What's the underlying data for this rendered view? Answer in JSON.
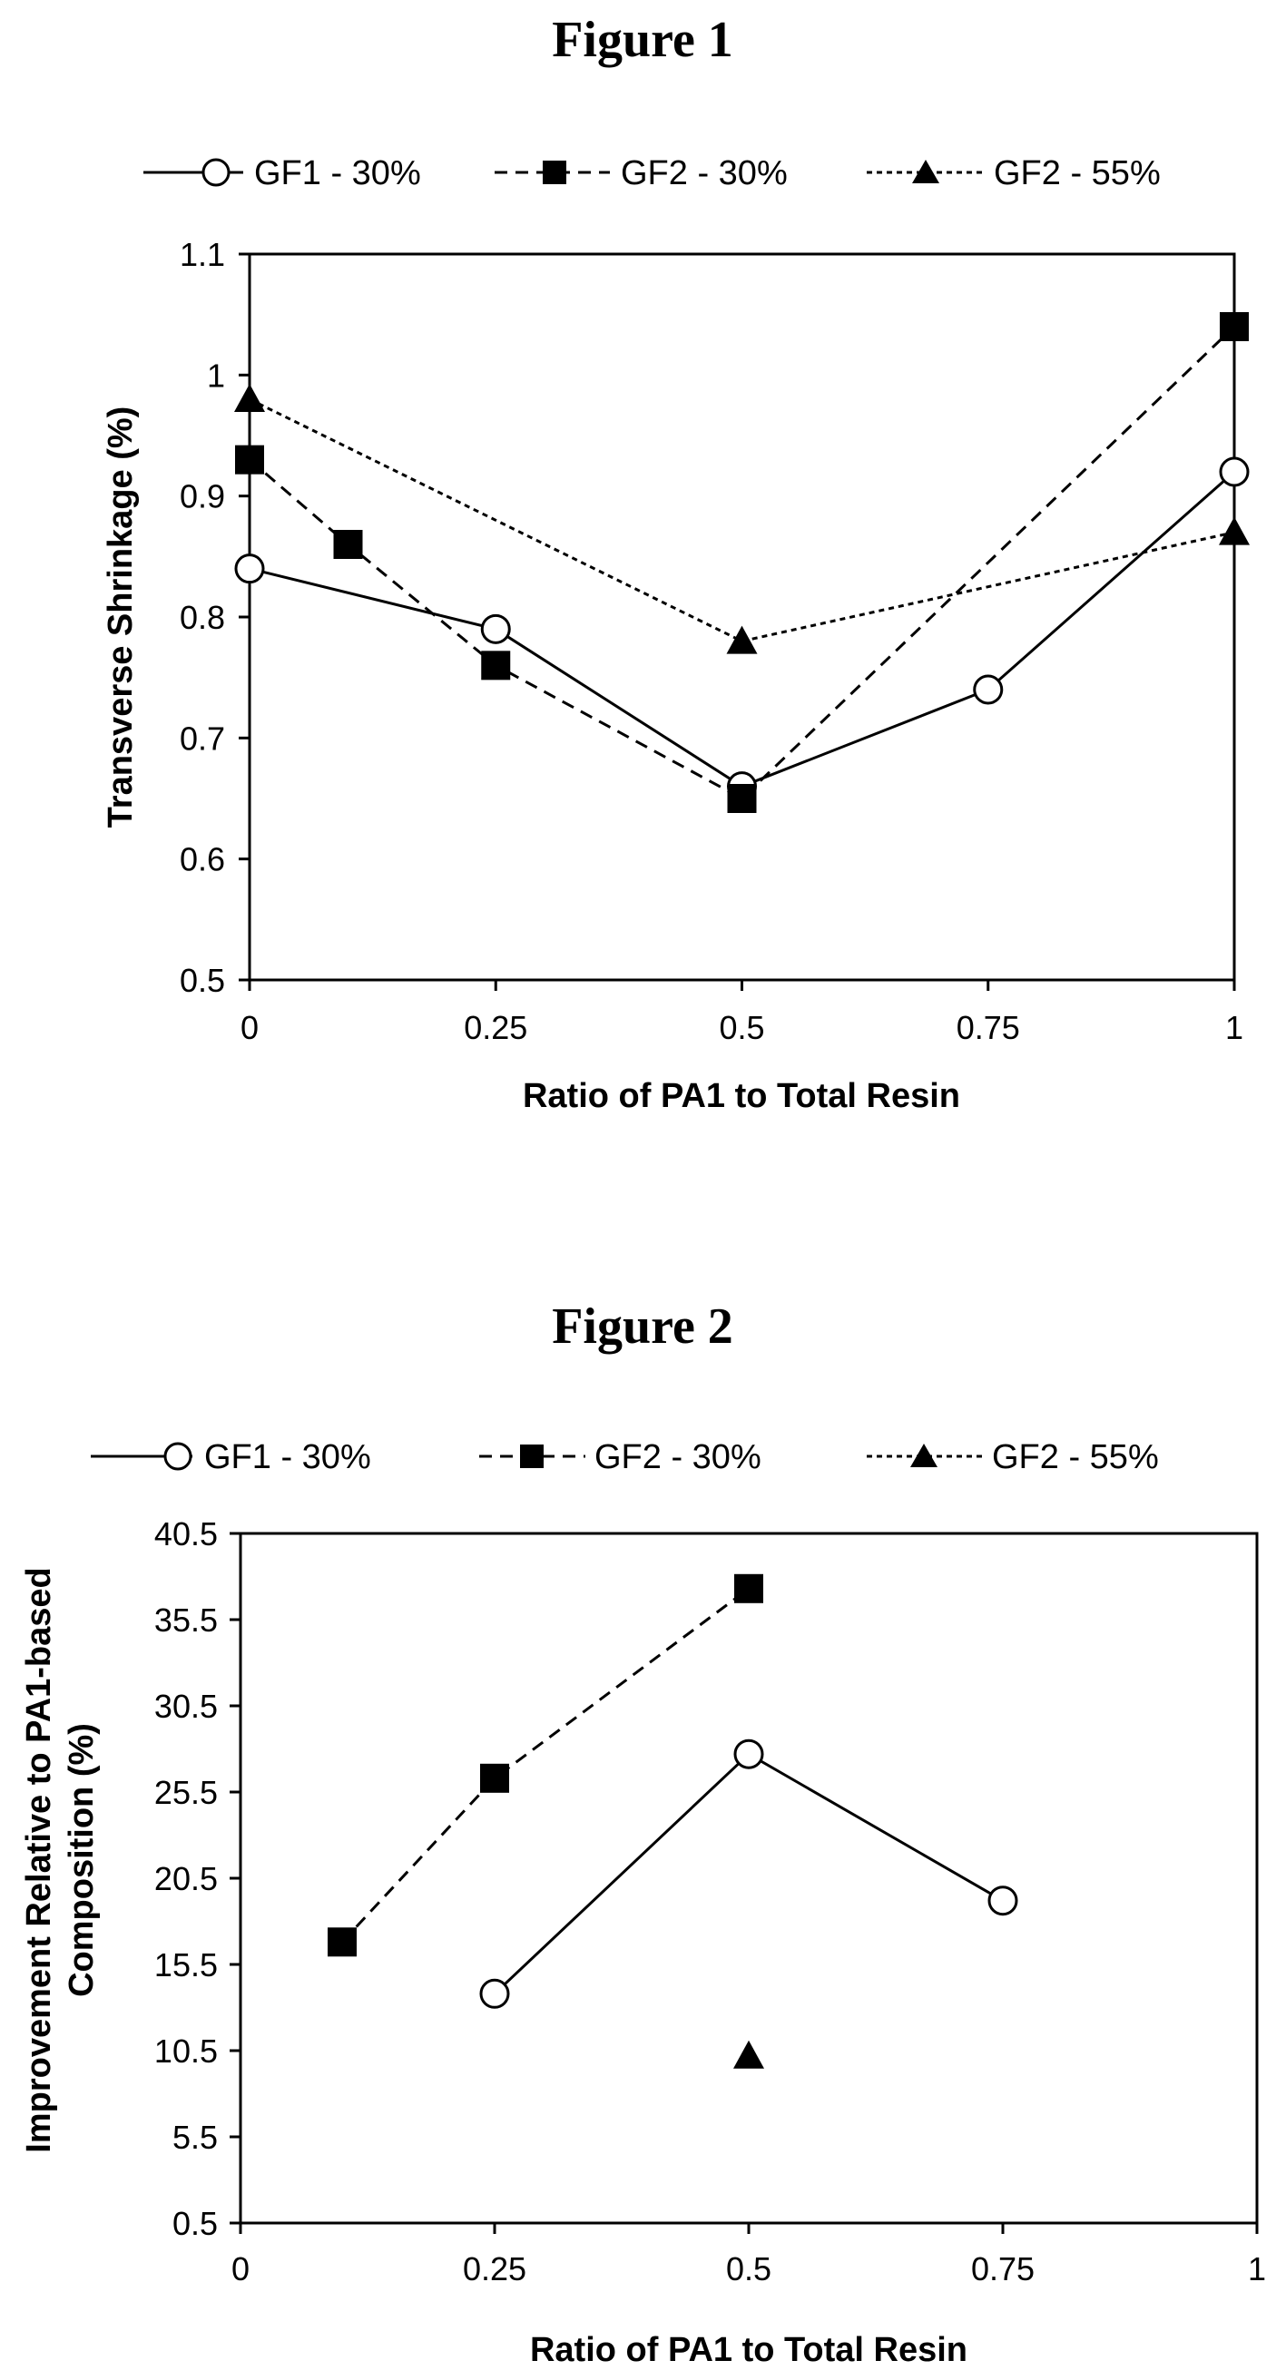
{
  "chart_data": [
    {
      "type": "line",
      "title": "Figure 1",
      "xlabel": "Ratio of  PA1 to Total Resin",
      "ylabel": "Transverse Shrinkage (%)",
      "xlim": [
        0,
        1
      ],
      "ylim": [
        0.5,
        1.1
      ],
      "xticks": [
        "0",
        "0.25",
        "0.5",
        "0.75",
        "1"
      ],
      "yticks": [
        "0.5",
        "0.6",
        "0.7",
        "0.8",
        "0.9",
        "1",
        "1.1"
      ],
      "grid": false,
      "legend_position": "top",
      "series": [
        {
          "name": "GF1 - 30%",
          "marker": "circle-open",
          "line": "solid",
          "x": [
            0,
            0.25,
            0.5,
            0.75,
            1
          ],
          "y": [
            0.84,
            0.79,
            0.66,
            0.74,
            0.92
          ]
        },
        {
          "name": "GF2 - 30%",
          "marker": "square",
          "line": "dashed",
          "x": [
            0,
            0.1,
            0.25,
            0.5,
            1
          ],
          "y": [
            0.93,
            0.86,
            0.76,
            0.65,
            1.04
          ]
        },
        {
          "name": "GF2 - 55%",
          "marker": "triangle",
          "line": "dotted",
          "x": [
            0,
            0.5,
            1
          ],
          "y": [
            0.98,
            0.78,
            0.87
          ]
        }
      ]
    },
    {
      "type": "line",
      "title": "Figure 2",
      "xlabel": "Ratio of PA1 to Total Resin",
      "ylabel": [
        "Improvement Relative to PA1-based",
        "Composition (%)"
      ],
      "xlim": [
        0,
        1
      ],
      "ylim": [
        0.5,
        40.5
      ],
      "xticks": [
        "0",
        "0.25",
        "0.5",
        "0.75",
        "1"
      ],
      "yticks": [
        "0.5",
        "5.5",
        "10.5",
        "15.5",
        "20.5",
        "25.5",
        "30.5",
        "35.5",
        "40.5"
      ],
      "grid": false,
      "legend_position": "top",
      "series": [
        {
          "name": "GF1 - 30%",
          "marker": "circle-open",
          "line": "solid",
          "x": [
            0.25,
            0.5,
            0.75
          ],
          "y": [
            13.8,
            27.7,
            19.2
          ]
        },
        {
          "name": "GF2 - 30%",
          "marker": "square",
          "line": "dashed",
          "x": [
            0.1,
            0.25,
            0.5
          ],
          "y": [
            16.8,
            26.3,
            37.3
          ]
        },
        {
          "name": "GF2 - 55%",
          "marker": "triangle",
          "line": "dotted",
          "x": [
            0.5
          ],
          "y": [
            10.2
          ]
        }
      ]
    }
  ]
}
